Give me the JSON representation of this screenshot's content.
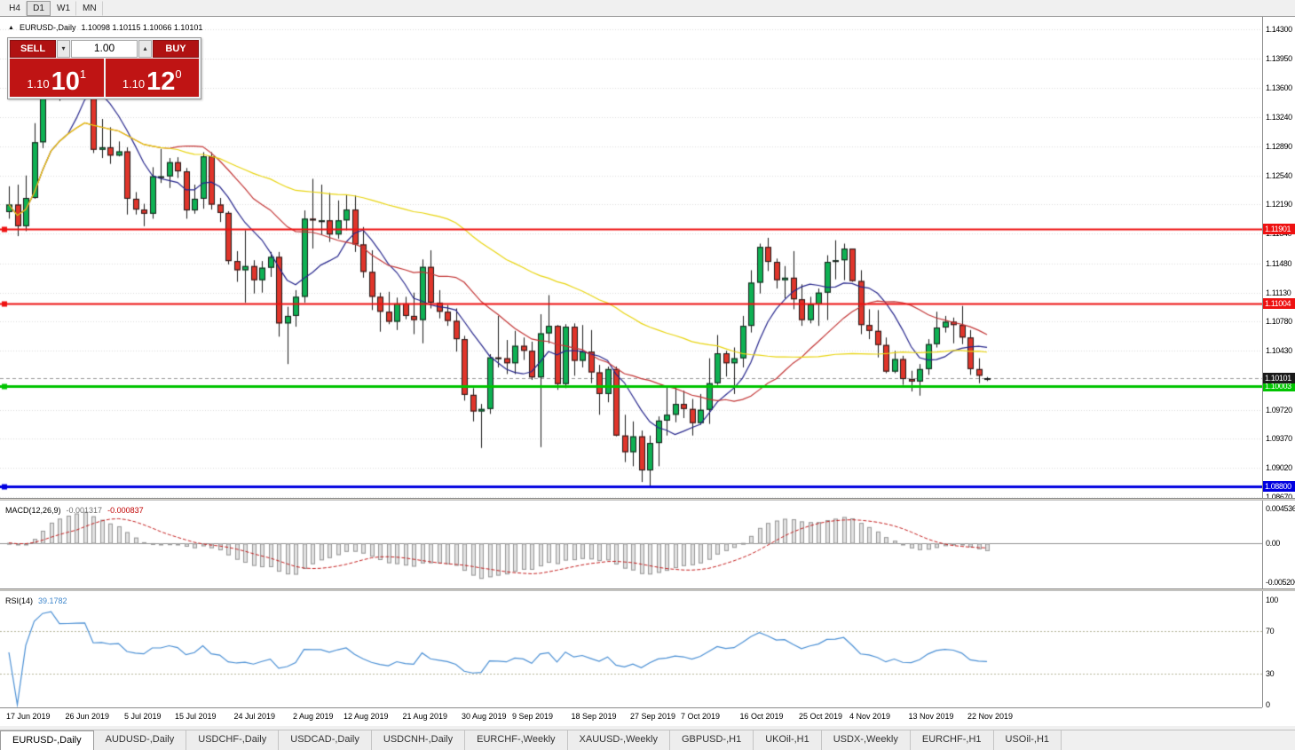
{
  "toolbar": {
    "timeframes": [
      "H4",
      "D1",
      "W1",
      "MN"
    ],
    "active": "D1"
  },
  "icons": {
    "panel_toggle": "▲",
    "volume_up": "▴",
    "volume_down": "▾"
  },
  "chart": {
    "title": "EURUSD-,Daily",
    "ohlc": "1.10098 1.10115 1.10066 1.10101"
  },
  "trade_panel": {
    "sell_label": "SELL",
    "buy_label": "BUY",
    "volume": "1.00",
    "sell_price": {
      "prefix": "1.10",
      "big": "10",
      "sup": "1"
    },
    "buy_price": {
      "prefix": "1.10",
      "big": "12",
      "sup": "0"
    }
  },
  "colors": {
    "bull": "#0eb153",
    "bear": "#e0352b",
    "wick": "#1a1a1a",
    "ma_fast": "#26268c",
    "ma_mid": "#c23434",
    "ma_slow": "#e8d410",
    "macd_hist_fill": "#e2e2e2",
    "macd_hist_stroke": "#979797",
    "macd_signal": "#c42020",
    "rsi_line": "#4a8fd4",
    "grid": "#dcdcdc",
    "current_label_bg": "#1a1a1a"
  },
  "chart_data": {
    "type": "candlestick",
    "symbol": "EURUSD-,Daily",
    "timeframe": "Daily",
    "ohlc_current": {
      "open": 1.10098,
      "high": 1.10115,
      "low": 1.10066,
      "close": 1.10101
    },
    "y_ticks": [
      {
        "label": "1.14300",
        "value": 1.143
      },
      {
        "label": "1.13950",
        "value": 1.1395
      },
      {
        "label": "1.13600",
        "value": 1.136
      },
      {
        "label": "1.13240",
        "value": 1.1324
      },
      {
        "label": "1.12890",
        "value": 1.1289
      },
      {
        "label": "1.12540",
        "value": 1.1254
      },
      {
        "label": "1.12190",
        "value": 1.1219
      },
      {
        "label": "1.11840",
        "value": 1.1184
      },
      {
        "label": "1.11480",
        "value": 1.1148
      },
      {
        "label": "1.11130",
        "value": 1.1113
      },
      {
        "label": "1.10780",
        "value": 1.1078
      },
      {
        "label": "1.10430",
        "value": 1.1043
      },
      {
        "label": "1.09720",
        "value": 1.0972
      },
      {
        "label": "1.09370",
        "value": 1.0937
      },
      {
        "label": "1.09020",
        "value": 1.0902
      },
      {
        "label": "1.08670",
        "value": 1.0867
      }
    ],
    "x_ticks": [
      {
        "label": "17 Jun 2019",
        "index": 0
      },
      {
        "label": "26 Jun 2019",
        "index": 7
      },
      {
        "label": "5 Jul 2019",
        "index": 14
      },
      {
        "label": "15 Jul 2019",
        "index": 20
      },
      {
        "label": "24 Jul 2019",
        "index": 27
      },
      {
        "label": "2 Aug 2019",
        "index": 34
      },
      {
        "label": "12 Aug 2019",
        "index": 40
      },
      {
        "label": "21 Aug 2019",
        "index": 47
      },
      {
        "label": "30 Aug 2019",
        "index": 54
      },
      {
        "label": "9 Sep 2019",
        "index": 60
      },
      {
        "label": "18 Sep 2019",
        "index": 67
      },
      {
        "label": "27 Sep 2019",
        "index": 74
      },
      {
        "label": "7 Oct 2019",
        "index": 80
      },
      {
        "label": "16 Oct 2019",
        "index": 87
      },
      {
        "label": "25 Oct 2019",
        "index": 94
      },
      {
        "label": "4 Nov 2019",
        "index": 100
      },
      {
        "label": "13 Nov 2019",
        "index": 107
      },
      {
        "label": "22 Nov 2019",
        "index": 114
      }
    ],
    "levels": [
      {
        "label": "1.11901",
        "value": 1.11901,
        "color": "#ee1111",
        "width": 2
      },
      {
        "label": "1.11004",
        "value": 1.11004,
        "color": "#ee1111",
        "width": 2
      },
      {
        "label": "1.10003",
        "value": 1.10003,
        "color": "#00c400",
        "width": 3
      },
      {
        "label": "1.08800",
        "value": 1.088,
        "color": "#0000e0",
        "width": 3
      }
    ],
    "current_price": {
      "label": "1.10101",
      "value": 1.10101
    },
    "moving_averages": [
      {
        "period": 8,
        "color": "#26268c"
      },
      {
        "period": 20,
        "color": "#c23434"
      },
      {
        "period": 50,
        "color": "#e8d410"
      }
    ],
    "indicators": {
      "macd": {
        "fast": 12,
        "slow": 26,
        "signal": 9
      },
      "rsi": {
        "period": 14
      }
    },
    "candles": [
      [
        1.121,
        1.1241,
        1.1202,
        1.1219
      ],
      [
        1.1219,
        1.1243,
        1.1181,
        1.1193
      ],
      [
        1.1193,
        1.1254,
        1.1187,
        1.1227
      ],
      [
        1.1227,
        1.1317,
        1.1226,
        1.1294
      ],
      [
        1.1294,
        1.1378,
        1.1287,
        1.1369
      ],
      [
        1.1369,
        1.1403,
        1.1364,
        1.1399
      ],
      [
        1.1399,
        1.1412,
        1.1344,
        1.1365
      ],
      [
        1.1365,
        1.1391,
        1.1348,
        1.1366
      ],
      [
        1.1366,
        1.1389,
        1.1352,
        1.1369
      ],
      [
        1.1369,
        1.1391,
        1.1358,
        1.1373
      ],
      [
        1.1365,
        1.1368,
        1.1281,
        1.1285
      ],
      [
        1.1285,
        1.1322,
        1.1275,
        1.1288
      ],
      [
        1.1288,
        1.1312,
        1.1268,
        1.1278
      ],
      [
        1.1278,
        1.1295,
        1.1277,
        1.1283
      ],
      [
        1.1283,
        1.1288,
        1.1207,
        1.1226
      ],
      [
        1.1226,
        1.1234,
        1.1207,
        1.1213
      ],
      [
        1.1213,
        1.122,
        1.1193,
        1.1208
      ],
      [
        1.1208,
        1.1264,
        1.1202,
        1.1253
      ],
      [
        1.1253,
        1.1286,
        1.1245,
        1.1253
      ],
      [
        1.1253,
        1.1275,
        1.1239,
        1.127
      ],
      [
        1.127,
        1.1276,
        1.1251,
        1.1259
      ],
      [
        1.1259,
        1.1263,
        1.1202,
        1.1212
      ],
      [
        1.1212,
        1.1243,
        1.1208,
        1.1226
      ],
      [
        1.1226,
        1.1282,
        1.1214,
        1.1277
      ],
      [
        1.1277,
        1.1282,
        1.1213,
        1.1219
      ],
      [
        1.1219,
        1.1227,
        1.1198,
        1.1209
      ],
      [
        1.1209,
        1.1211,
        1.1147,
        1.1151
      ],
      [
        1.1151,
        1.1163,
        1.1126,
        1.114
      ],
      [
        1.114,
        1.1188,
        1.1101,
        1.1145
      ],
      [
        1.1145,
        1.1152,
        1.1112,
        1.1128
      ],
      [
        1.1128,
        1.1151,
        1.1113,
        1.1143
      ],
      [
        1.1143,
        1.1162,
        1.1132,
        1.1156
      ],
      [
        1.1156,
        1.1162,
        1.106,
        1.1076
      ],
      [
        1.1076,
        1.1096,
        1.1027,
        1.1085
      ],
      [
        1.1085,
        1.1116,
        1.1072,
        1.1108
      ],
      [
        1.1108,
        1.1212,
        1.1101,
        1.1202
      ],
      [
        1.1202,
        1.125,
        1.1166,
        1.12
      ],
      [
        1.12,
        1.1243,
        1.1183,
        1.12
      ],
      [
        1.12,
        1.1233,
        1.1174,
        1.1183
      ],
      [
        1.1183,
        1.1224,
        1.1178,
        1.12
      ],
      [
        1.12,
        1.1231,
        1.1188,
        1.1213
      ],
      [
        1.1213,
        1.123,
        1.1162,
        1.1171
      ],
      [
        1.1171,
        1.1192,
        1.1131,
        1.1138
      ],
      [
        1.1138,
        1.1164,
        1.1092,
        1.1108
      ],
      [
        1.1108,
        1.1113,
        1.1066,
        1.109
      ],
      [
        1.109,
        1.1114,
        1.1075,
        1.1078
      ],
      [
        1.1078,
        1.1107,
        1.1068,
        1.11
      ],
      [
        1.11,
        1.1108,
        1.1081,
        1.1085
      ],
      [
        1.1085,
        1.1113,
        1.1063,
        1.108
      ],
      [
        1.108,
        1.1153,
        1.1052,
        1.1144
      ],
      [
        1.1144,
        1.1164,
        1.1094,
        1.1101
      ],
      [
        1.1101,
        1.1116,
        1.1082,
        1.109
      ],
      [
        1.109,
        1.1098,
        1.1073,
        1.1079
      ],
      [
        1.1079,
        1.1094,
        1.1042,
        1.1057
      ],
      [
        1.1057,
        1.1061,
        1.0983,
        1.099
      ],
      [
        1.099,
        1.0998,
        1.0958,
        1.097
      ],
      [
        1.097,
        1.0979,
        1.0926,
        1.0973
      ],
      [
        1.0973,
        1.1039,
        1.0967,
        1.1035
      ],
      [
        1.1035,
        1.1085,
        1.1023,
        1.1034
      ],
      [
        1.1034,
        1.1056,
        1.1015,
        1.1028
      ],
      [
        1.1028,
        1.1067,
        1.1015,
        1.1049
      ],
      [
        1.1049,
        1.1059,
        1.1032,
        1.1043
      ],
      [
        1.1043,
        1.1054,
        1.1008,
        1.1011
      ],
      [
        1.1011,
        1.1087,
        1.0927,
        1.1064
      ],
      [
        1.1064,
        1.111,
        1.1052,
        1.1073
      ],
      [
        1.1073,
        1.1074,
        1.0996,
        1.1003
      ],
      [
        1.1003,
        1.1075,
        1.0998,
        1.1072
      ],
      [
        1.1072,
        1.1076,
        1.1013,
        1.1031
      ],
      [
        1.1031,
        1.1074,
        1.1023,
        1.1042
      ],
      [
        1.1042,
        1.1068,
        1.1004,
        1.1017
      ],
      [
        1.1017,
        1.1026,
        1.0966,
        1.0991
      ],
      [
        1.0991,
        1.1024,
        1.0981,
        1.1021
      ],
      [
        1.1021,
        1.1024,
        1.094,
        1.0941
      ],
      [
        1.0941,
        1.0966,
        1.0909,
        1.0921
      ],
      [
        1.0921,
        1.0958,
        1.0904,
        1.094
      ],
      [
        1.094,
        1.0947,
        1.0885,
        1.0899
      ],
      [
        1.0899,
        1.0941,
        1.0879,
        1.0932
      ],
      [
        1.0932,
        1.0964,
        1.0904,
        1.0959
      ],
      [
        1.0959,
        1.0999,
        1.0941,
        1.0966
      ],
      [
        1.0966,
        1.0999,
        1.0957,
        1.0979
      ],
      [
        1.0979,
        1.0995,
        1.0962,
        1.0973
      ],
      [
        1.0973,
        1.0985,
        1.0941,
        1.0956
      ],
      [
        1.0956,
        1.0991,
        1.0954,
        1.0972
      ],
      [
        1.0972,
        1.1034,
        1.0955,
        1.1004
      ],
      [
        1.1004,
        1.1062,
        1.1002,
        1.104
      ],
      [
        1.104,
        1.1043,
        1.1012,
        1.1028
      ],
      [
        1.1028,
        1.1047,
        1.0991,
        1.1034
      ],
      [
        1.1034,
        1.1085,
        1.1023,
        1.1073
      ],
      [
        1.1073,
        1.114,
        1.1065,
        1.1125
      ],
      [
        1.1125,
        1.1172,
        1.1112,
        1.1168
      ],
      [
        1.1168,
        1.1179,
        1.1139,
        1.115
      ],
      [
        1.115,
        1.1154,
        1.1118,
        1.1128
      ],
      [
        1.1128,
        1.1145,
        1.1106,
        1.1131
      ],
      [
        1.1131,
        1.1163,
        1.1093,
        1.1105
      ],
      [
        1.1105,
        1.1123,
        1.1073,
        1.108
      ],
      [
        1.108,
        1.1108,
        1.1076,
        1.1099
      ],
      [
        1.1099,
        1.1118,
        1.1073,
        1.1113
      ],
      [
        1.1113,
        1.1158,
        1.108,
        1.115
      ],
      [
        1.115,
        1.1176,
        1.1129,
        1.1152
      ],
      [
        1.1152,
        1.1172,
        1.1128,
        1.1166
      ],
      [
        1.1166,
        1.1166,
        1.1126,
        1.1127
      ],
      [
        1.1127,
        1.114,
        1.1063,
        1.1074
      ],
      [
        1.1074,
        1.1093,
        1.1057,
        1.1067
      ],
      [
        1.1067,
        1.1092,
        1.1035,
        1.105
      ],
      [
        1.105,
        1.1059,
        1.1016,
        1.1018
      ],
      [
        1.1018,
        1.1043,
        1.1016,
        1.1033
      ],
      [
        1.1033,
        1.1037,
        1.1002,
        1.1009
      ],
      [
        1.1009,
        1.1019,
        1.0994,
        1.1006
      ],
      [
        1.1006,
        1.1027,
        1.0989,
        1.1021
      ],
      [
        1.1021,
        1.1057,
        1.1014,
        1.1051
      ],
      [
        1.1051,
        1.109,
        1.1047,
        1.1071
      ],
      [
        1.1071,
        1.1085,
        1.1065,
        1.1078
      ],
      [
        1.1078,
        1.1083,
        1.1052,
        1.1074
      ],
      [
        1.1074,
        1.1097,
        1.1051,
        1.1059
      ],
      [
        1.1059,
        1.1068,
        1.1014,
        1.1021
      ],
      [
        1.1021,
        1.1034,
        1.1004,
        1.1013
      ],
      [
        1.10098,
        1.10115,
        1.10066,
        1.10101
      ]
    ]
  },
  "macd_panel": {
    "label": "MACD(12,26,9)",
    "value_main": "-0.001317",
    "value_signal": "-0.000837",
    "scale": [
      {
        "label": "0.004536",
        "value": 0.004536
      },
      {
        "label": "0.00",
        "value": 0
      },
      {
        "label": "-0.005200",
        "value": -0.0052
      }
    ]
  },
  "rsi_panel": {
    "label": "RSI(14)",
    "value": "39.1782",
    "levels": [
      70,
      30
    ],
    "scale": [
      {
        "label": "100",
        "value": 100
      },
      {
        "label": "70",
        "value": 70
      },
      {
        "label": "30",
        "value": 30
      },
      {
        "label": "0",
        "value": 0
      }
    ]
  },
  "tabs": [
    {
      "label": "EURUSD-,Daily",
      "active": true
    },
    {
      "label": "AUDUSD-,Daily"
    },
    {
      "label": "USDCHF-,Daily"
    },
    {
      "label": "USDCAD-,Daily"
    },
    {
      "label": "USDCNH-,Daily"
    },
    {
      "label": "EURCHF-,Weekly"
    },
    {
      "label": "XAUUSD-,Weekly"
    },
    {
      "label": "GBPUSD-,H1"
    },
    {
      "label": "UKOil-,H1"
    },
    {
      "label": "USDX-,Weekly"
    },
    {
      "label": "EURCHF-,H1"
    },
    {
      "label": "USOil-,H1"
    }
  ]
}
